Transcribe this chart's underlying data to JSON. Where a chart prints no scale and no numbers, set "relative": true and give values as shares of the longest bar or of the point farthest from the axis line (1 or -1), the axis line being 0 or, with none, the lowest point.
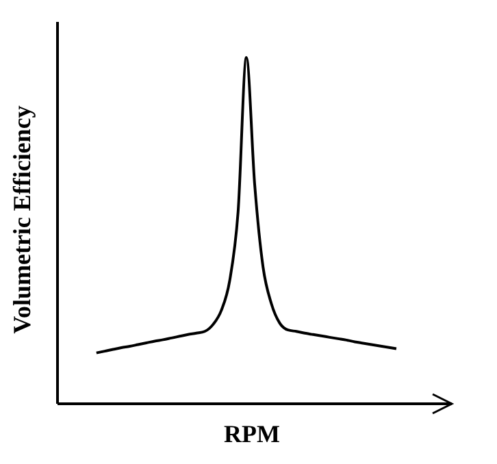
{
  "chart_data": {
    "type": "line",
    "relative": true,
    "xlabel": "RPM",
    "ylabel": "Volumetric Efficiency",
    "line_style": "solid",
    "categories": [
      null,
      null,
      null,
      null,
      null,
      null,
      null,
      null,
      null,
      null,
      null,
      null,
      null,
      null,
      null,
      null,
      null,
      null,
      null,
      null,
      null,
      null,
      null,
      null,
      null,
      null,
      null,
      null,
      null,
      null,
      null,
      null,
      null,
      null,
      null,
      null,
      null
    ],
    "series": [
      {
        "color": "#000000",
        "values": [
          0.147,
          0.152,
          0.157,
          0.162,
          0.166,
          0.171,
          0.176,
          0.181,
          0.185,
          0.19,
          0.195,
          0.2,
          0.204,
          0.209,
          0.229,
          0.27,
          0.356,
          0.553,
          1,
          0.632,
          0.395,
          0.289,
          0.233,
          0.213,
          0.209,
          0.204,
          0.2,
          0.196,
          0.192,
          0.188,
          0.184,
          0.179,
          0.175,
          0.171,
          0.167,
          0.163,
          0.159
        ]
      }
    ]
  }
}
